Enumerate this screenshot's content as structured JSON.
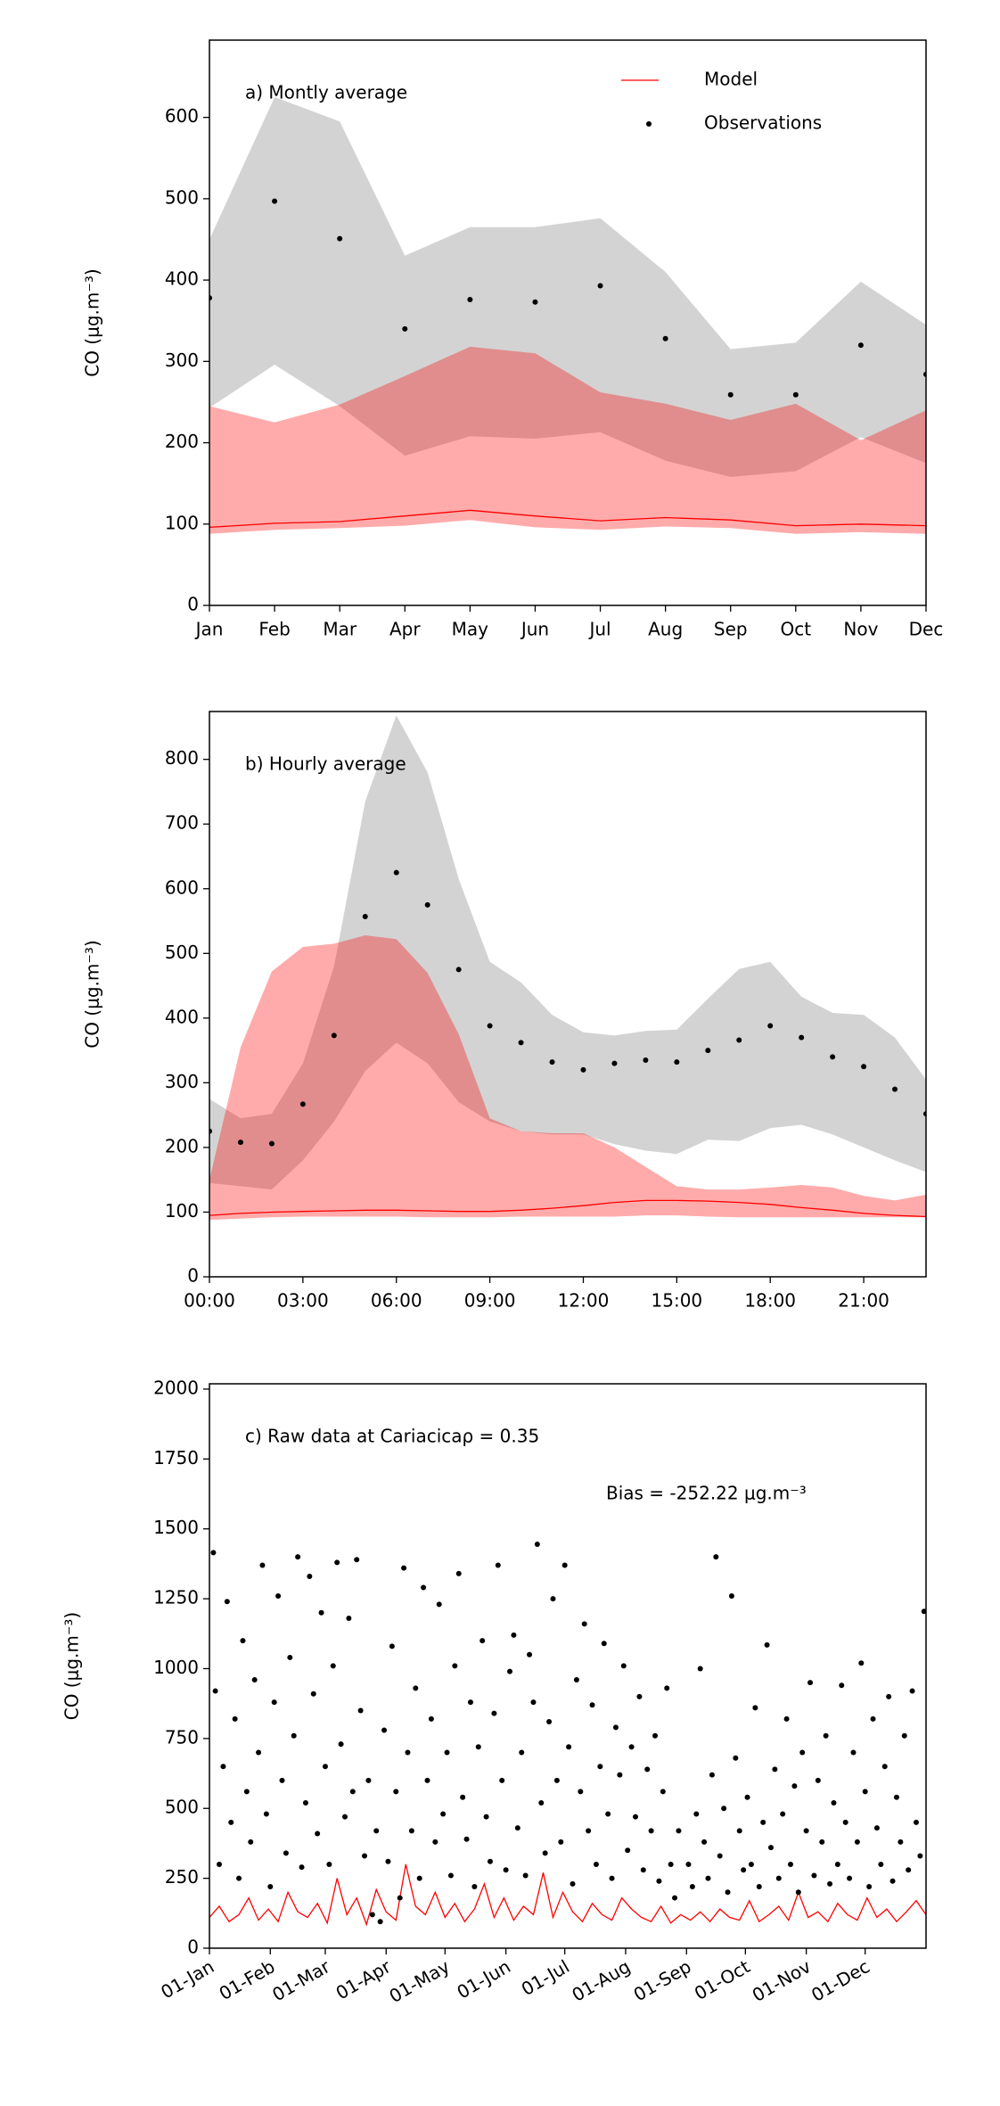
{
  "chart_data": [
    {
      "type": "line",
      "title": "a) Montly average",
      "ylabel": "CO (μg.m⁻³)",
      "legend": "upper right",
      "categories": [
        "Jan",
        "Feb",
        "Mar",
        "Apr",
        "May",
        "Jun",
        "Jul",
        "Aug",
        "Sep",
        "Oct",
        "Nov",
        "Dec"
      ],
      "ylim": [
        0,
        695
      ],
      "yticks": [
        0,
        100,
        200,
        300,
        400,
        500,
        600
      ],
      "bands": [
        {
          "color": "#d3d3d3",
          "opacity": 1,
          "upper": [
            450,
            625,
            595,
            430,
            465,
            465,
            476,
            410,
            315,
            323,
            398,
            345
          ],
          "lower": [
            243,
            296,
            245,
            184,
            208,
            205,
            213,
            178,
            158,
            165,
            207,
            175
          ]
        },
        {
          "color": "#ff0000",
          "opacity": 0.33,
          "upper": [
            245,
            225,
            247,
            282,
            318,
            310,
            262,
            248,
            228,
            248,
            203,
            240
          ],
          "lower": [
            88,
            93,
            95,
            98,
            105,
            96,
            93,
            97,
            95,
            88,
            90,
            88
          ]
        }
      ],
      "series": [
        {
          "name": "Model",
          "color": "#ff0000",
          "style": "line",
          "values": [
            96,
            101,
            103,
            110,
            117,
            110,
            104,
            108,
            105,
            98,
            100,
            98
          ]
        },
        {
          "name": "Observations",
          "color": "#000000",
          "style": "points",
          "values": [
            378,
            497,
            451,
            340,
            376,
            373,
            393,
            328,
            259,
            259,
            320,
            284
          ]
        }
      ]
    },
    {
      "type": "line",
      "title": "b) Hourly average",
      "ylabel": "CO (μg.m⁻³)",
      "x": [
        0,
        1,
        2,
        3,
        4,
        5,
        6,
        7,
        8,
        9,
        10,
        11,
        12,
        13,
        14,
        15,
        16,
        17,
        18,
        19,
        20,
        21,
        22,
        23
      ],
      "xlim": [
        0,
        23
      ],
      "xticks": [
        {
          "value": 0,
          "label": "00:00"
        },
        {
          "value": 3,
          "label": "03:00"
        },
        {
          "value": 6,
          "label": "06:00"
        },
        {
          "value": 9,
          "label": "09:00"
        },
        {
          "value": 12,
          "label": "12:00"
        },
        {
          "value": 15,
          "label": "15:00"
        },
        {
          "value": 18,
          "label": "18:00"
        },
        {
          "value": 21,
          "label": "21:00"
        }
      ],
      "ylim": [
        0,
        874
      ],
      "yticks": [
        0,
        100,
        200,
        300,
        400,
        500,
        600,
        700,
        800
      ],
      "bands": [
        {
          "color": "#d3d3d3",
          "opacity": 1,
          "upper": [
            275,
            245,
            252,
            330,
            480,
            735,
            868,
            780,
            615,
            487,
            455,
            405,
            378,
            373,
            380,
            382,
            430,
            476,
            487,
            433,
            408,
            405,
            370,
            305
          ],
          "lower": [
            145,
            140,
            135,
            180,
            240,
            318,
            362,
            330,
            270,
            240,
            225,
            220,
            220,
            205,
            195,
            190,
            212,
            210,
            230,
            235,
            220,
            200,
            180,
            162
          ]
        },
        {
          "color": "#ff0000",
          "opacity": 0.33,
          "upper": [
            150,
            355,
            472,
            510,
            515,
            528,
            522,
            470,
            375,
            245,
            225,
            222,
            222,
            200,
            170,
            140,
            135,
            135,
            138,
            142,
            138,
            125,
            118,
            127
          ],
          "lower": [
            88,
            90,
            92,
            93,
            93,
            93,
            93,
            92,
            92,
            92,
            93,
            93,
            93,
            93,
            95,
            95,
            93,
            92,
            92,
            92,
            92,
            92,
            92,
            92
          ]
        }
      ],
      "series": [
        {
          "name": "Model",
          "color": "#ff0000",
          "style": "line",
          "values": [
            95,
            98,
            100,
            101,
            102,
            103,
            103,
            102,
            101,
            101,
            103,
            106,
            110,
            115,
            118,
            118,
            117,
            115,
            112,
            107,
            103,
            98,
            95,
            93
          ]
        },
        {
          "name": "Observations",
          "color": "#000000",
          "style": "points",
          "values": [
            225,
            208,
            206,
            267,
            373,
            557,
            625,
            575,
            475,
            388,
            362,
            332,
            320,
            330,
            335,
            332,
            350,
            366,
            388,
            370,
            340,
            325,
            290,
            252
          ]
        }
      ]
    },
    {
      "type": "line",
      "title": "c) Raw data at Cariacicaρ = 0.35",
      "annotation": "Bias = -252.22 μg.m⁻³",
      "ylabel": "CO (μg.m⁻³)",
      "xtick_rotation": 30,
      "xlim": [
        0,
        365
      ],
      "xticks": [
        {
          "value": 0,
          "label": "01-Jan"
        },
        {
          "value": 31,
          "label": "01-Feb"
        },
        {
          "value": 59,
          "label": "01-Mar"
        },
        {
          "value": 90,
          "label": "01-Apr"
        },
        {
          "value": 120,
          "label": "01-May"
        },
        {
          "value": 151,
          "label": "01-Jun"
        },
        {
          "value": 181,
          "label": "01-Jul"
        },
        {
          "value": 212,
          "label": "01-Aug"
        },
        {
          "value": 243,
          "label": "01-Sep"
        },
        {
          "value": 273,
          "label": "01-Oct"
        },
        {
          "value": 304,
          "label": "01-Nov"
        },
        {
          "value": 334,
          "label": "01-Dec"
        }
      ],
      "ylim": [
        0,
        2019
      ],
      "yticks": [
        0,
        250,
        500,
        750,
        1000,
        1250,
        1500,
        1750,
        2000
      ],
      "series": [
        {
          "name": "Model",
          "color": "#ff0000",
          "style": "line",
          "x": [
            0,
            5,
            10,
            15,
            20,
            25,
            30,
            35,
            40,
            45,
            50,
            55,
            60,
            65,
            70,
            75,
            80,
            85,
            90,
            95,
            100,
            105,
            110,
            115,
            120,
            125,
            130,
            135,
            140,
            145,
            150,
            155,
            160,
            165,
            170,
            175,
            180,
            185,
            190,
            195,
            200,
            205,
            210,
            215,
            220,
            225,
            230,
            235,
            240,
            245,
            250,
            255,
            260,
            265,
            270,
            275,
            280,
            285,
            290,
            295,
            300,
            305,
            310,
            315,
            320,
            325,
            330,
            335,
            340,
            345,
            350,
            355,
            360,
            365
          ],
          "values": [
            110,
            150,
            95,
            120,
            180,
            100,
            140,
            95,
            200,
            130,
            110,
            160,
            90,
            250,
            120,
            180,
            85,
            210,
            130,
            100,
            300,
            150,
            120,
            200,
            110,
            160,
            95,
            140,
            230,
            110,
            180,
            100,
            150,
            120,
            270,
            110,
            200,
            130,
            95,
            160,
            120,
            100,
            180,
            140,
            110,
            95,
            150,
            90,
            120,
            100,
            130,
            95,
            140,
            110,
            100,
            170,
            95,
            120,
            150,
            100,
            200,
            110,
            130,
            95,
            160,
            120,
            100,
            180,
            110,
            140,
            95,
            130,
            170,
            120
          ]
        },
        {
          "name": "Observations",
          "color": "#000000",
          "style": "points",
          "x": [
            2,
            3,
            5,
            7,
            9,
            11,
            13,
            15,
            17,
            19,
            21,
            23,
            25,
            27,
            29,
            31,
            33,
            35,
            37,
            39,
            41,
            43,
            45,
            47,
            49,
            51,
            53,
            55,
            57,
            59,
            61,
            63,
            65,
            67,
            69,
            71,
            73,
            75,
            77,
            79,
            81,
            83,
            85,
            87,
            89,
            91,
            93,
            95,
            97,
            99,
            101,
            103,
            105,
            107,
            109,
            111,
            113,
            115,
            117,
            119,
            121,
            123,
            125,
            127,
            129,
            131,
            133,
            135,
            137,
            139,
            141,
            143,
            145,
            147,
            149,
            151,
            153,
            155,
            157,
            159,
            161,
            163,
            165,
            167,
            169,
            171,
            173,
            175,
            177,
            179,
            181,
            183,
            185,
            187,
            189,
            191,
            193,
            195,
            197,
            199,
            201,
            203,
            205,
            207,
            209,
            211,
            213,
            215,
            217,
            219,
            221,
            223,
            225,
            227,
            229,
            231,
            233,
            235,
            237,
            239,
            244,
            246,
            248,
            250,
            252,
            254,
            256,
            258,
            260,
            262,
            264,
            266,
            268,
            270,
            272,
            274,
            276,
            278,
            280,
            282,
            284,
            286,
            288,
            290,
            292,
            294,
            296,
            298,
            300,
            302,
            304,
            306,
            308,
            310,
            312,
            314,
            316,
            318,
            320,
            322,
            324,
            326,
            328,
            330,
            332,
            334,
            336,
            338,
            340,
            342,
            344,
            346,
            348,
            350,
            352,
            354,
            356,
            358,
            360,
            362,
            364
          ],
          "values": [
            1415,
            920,
            300,
            650,
            1240,
            450,
            820,
            250,
            1100,
            560,
            380,
            960,
            700,
            1370,
            480,
            220,
            880,
            1260,
            600,
            340,
            1040,
            760,
            1400,
            290,
            520,
            1330,
            910,
            410,
            1200,
            650,
            300,
            1010,
            1380,
            730,
            470,
            1180,
            560,
            1390,
            850,
            330,
            600,
            120,
            420,
            95,
            780,
            310,
            1080,
            560,
            180,
            1360,
            700,
            420,
            930,
            250,
            1290,
            600,
            820,
            380,
            1230,
            480,
            700,
            260,
            1010,
            1340,
            540,
            390,
            880,
            220,
            720,
            1100,
            470,
            310,
            840,
            1370,
            600,
            280,
            990,
            1120,
            430,
            700,
            260,
            1050,
            880,
            1445,
            520,
            340,
            810,
            1250,
            600,
            380,
            1370,
            720,
            230,
            960,
            560,
            1160,
            420,
            870,
            300,
            650,
            1090,
            480,
            250,
            790,
            620,
            1010,
            350,
            720,
            470,
            900,
            280,
            640,
            420,
            760,
            240,
            560,
            930,
            300,
            180,
            420,
            300,
            220,
            480,
            1000,
            380,
            250,
            620,
            1400,
            330,
            500,
            200,
            1260,
            680,
            420,
            280,
            540,
            300,
            860,
            220,
            450,
            1085,
            360,
            640,
            250,
            480,
            820,
            300,
            580,
            200,
            700,
            420,
            950,
            260,
            600,
            380,
            760,
            230,
            520,
            300,
            940,
            450,
            250,
            700,
            380,
            1020,
            560,
            220,
            820,
            430,
            300,
            650,
            900,
            240,
            540,
            380,
            760,
            280,
            920,
            450,
            330,
            1205
          ]
        }
      ]
    }
  ]
}
